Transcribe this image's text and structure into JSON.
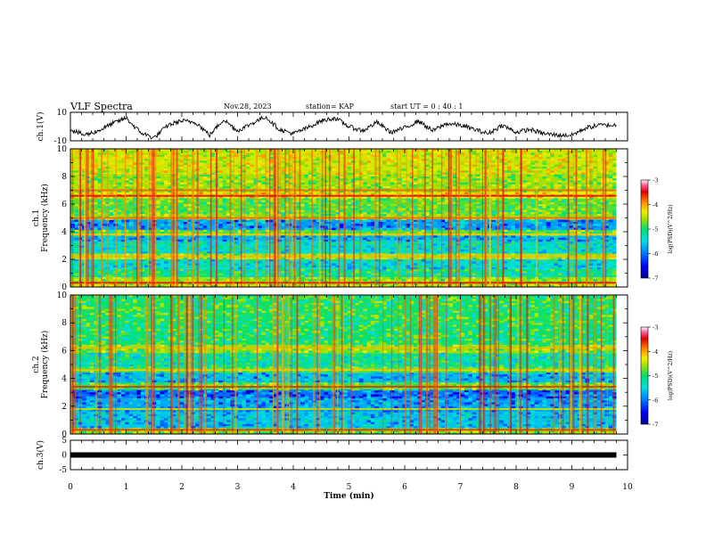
{
  "header": {
    "title": "VLF Spectra",
    "date": "Nov.28, 2023",
    "station": "station= KAP",
    "start": "start  UT =   0 : 40 : 1"
  },
  "colors": {
    "colormap": [
      "#000090",
      "#0000ff",
      "#0090ff",
      "#00e0e0",
      "#00e070",
      "#a0e000",
      "#f0f000",
      "#ff8000",
      "#e00000",
      "#ff60a0",
      "#ffffff"
    ]
  },
  "chart_data": [
    {
      "id": "ch1-waveform",
      "type": "line",
      "ylabel": "ch.1(V)",
      "ylim": [
        -10,
        10
      ],
      "ytick_labels": [
        "10",
        "-10"
      ],
      "xlim": [
        0,
        10
      ],
      "x": [
        0,
        0.25,
        0.5,
        0.75,
        1.0,
        1.25,
        1.5,
        1.75,
        2.0,
        2.25,
        2.5,
        2.75,
        3.0,
        3.25,
        3.5,
        3.75,
        4.0,
        4.25,
        4.5,
        4.75,
        5.0,
        5.25,
        5.5,
        5.75,
        6.0,
        6.25,
        6.5,
        6.75,
        7.0,
        7.25,
        7.5,
        7.75,
        8.0,
        8.25,
        8.5,
        8.75,
        9.0,
        9.25,
        9.5,
        9.8
      ],
      "y": [
        -2,
        -6,
        -3,
        2,
        6,
        -4,
        -8,
        1,
        4,
        3,
        -6,
        5,
        -3,
        2,
        7,
        -2,
        -5,
        -1,
        4,
        6,
        0,
        -3,
        3,
        -4,
        -1,
        4,
        -3,
        2,
        1,
        -2,
        -5,
        1,
        -4,
        -2,
        -5,
        -6,
        -6,
        -1,
        1,
        1
      ]
    },
    {
      "id": "ch1-spectrogram",
      "type": "heatmap",
      "ylabel": "ch.1\nFrequency (kHz)",
      "ylim": [
        0,
        10
      ],
      "ytick_labels": [
        "0",
        "2",
        "4",
        "6",
        "8",
        "10"
      ],
      "xlim": [
        0,
        10
      ],
      "colorbar": {
        "label": "log(PSD)(V^2/Hz)",
        "range": [
          -7,
          -3
        ],
        "tick_labels": [
          "-3",
          "-4",
          "-5",
          "-6",
          "-7"
        ]
      },
      "bands_khz": [
        {
          "from": 0,
          "to": 0.3,
          "level": 0.62
        },
        {
          "from": 0.3,
          "to": 0.7,
          "level": 0.55
        },
        {
          "from": 0.7,
          "to": 1.3,
          "level": 0.42
        },
        {
          "from": 1.3,
          "to": 2.0,
          "level": 0.34
        },
        {
          "from": 2.0,
          "to": 2.4,
          "level": 0.58
        },
        {
          "from": 2.4,
          "to": 3.3,
          "level": 0.36
        },
        {
          "from": 3.3,
          "to": 3.7,
          "level": 0.28
        },
        {
          "from": 3.7,
          "to": 4.1,
          "level": 0.5
        },
        {
          "from": 4.1,
          "to": 4.9,
          "level": 0.24
        },
        {
          "from": 4.9,
          "to": 5.3,
          "level": 0.55
        },
        {
          "from": 5.3,
          "to": 6.4,
          "level": 0.5
        },
        {
          "from": 6.4,
          "to": 6.9,
          "level": 0.66
        },
        {
          "from": 6.9,
          "to": 8.2,
          "level": 0.56
        },
        {
          "from": 8.2,
          "to": 10.0,
          "level": 0.62
        }
      ],
      "lines_khz": [
        {
          "f": 0.3,
          "level": 0.9
        },
        {
          "f": 2.2,
          "level": 0.72
        },
        {
          "f": 3.8,
          "level": 0.7
        },
        {
          "f": 5.0,
          "level": 0.8
        },
        {
          "f": 6.6,
          "level": 0.88
        },
        {
          "f": 7.0,
          "level": 0.8
        }
      ]
    },
    {
      "id": "ch2-spectrogram",
      "type": "heatmap",
      "ylabel": "ch.2\nFrequency (kHz)",
      "ylim": [
        0,
        10
      ],
      "ytick_labels": [
        "0",
        "2",
        "4",
        "6",
        "8",
        "10"
      ],
      "xlim": [
        0,
        10
      ],
      "colorbar": {
        "label": "log(PSD)(V^2/Hz)",
        "range": [
          -7,
          -3
        ],
        "tick_labels": [
          "-3",
          "-4",
          "-5",
          "-6",
          "-7"
        ]
      },
      "bands_khz": [
        {
          "from": 0,
          "to": 0.4,
          "level": 0.55
        },
        {
          "from": 0.4,
          "to": 1.6,
          "level": 0.3
        },
        {
          "from": 1.6,
          "to": 2.6,
          "level": 0.26
        },
        {
          "from": 2.6,
          "to": 3.2,
          "level": 0.2
        },
        {
          "from": 3.2,
          "to": 3.7,
          "level": 0.5
        },
        {
          "from": 3.7,
          "to": 4.4,
          "level": 0.28
        },
        {
          "from": 4.4,
          "to": 4.8,
          "level": 0.5
        },
        {
          "from": 4.8,
          "to": 5.8,
          "level": 0.4
        },
        {
          "from": 5.8,
          "to": 6.4,
          "level": 0.55
        },
        {
          "from": 6.4,
          "to": 8.0,
          "level": 0.45
        },
        {
          "from": 8.0,
          "to": 10.0,
          "level": 0.46
        }
      ],
      "lines_khz": [
        {
          "f": 0.3,
          "level": 0.85
        },
        {
          "f": 1.8,
          "level": 0.6
        },
        {
          "f": 3.4,
          "level": 0.85
        },
        {
          "f": 4.6,
          "level": 0.7
        },
        {
          "f": 6.2,
          "level": 0.72
        }
      ]
    },
    {
      "id": "ch3-waveform",
      "type": "line",
      "ylabel": "ch.3(V)",
      "ylim": [
        -5,
        5
      ],
      "ytick_labels": [
        "5",
        "0",
        "-5"
      ],
      "xlim": [
        0,
        10
      ],
      "x": [
        0,
        9.8
      ],
      "y": [
        0,
        0
      ]
    }
  ],
  "xaxis": {
    "label": "Time  (min)",
    "tick_labels": [
      "0",
      "1",
      "2",
      "3",
      "4",
      "5",
      "6",
      "7",
      "8",
      "9",
      "10"
    ]
  }
}
